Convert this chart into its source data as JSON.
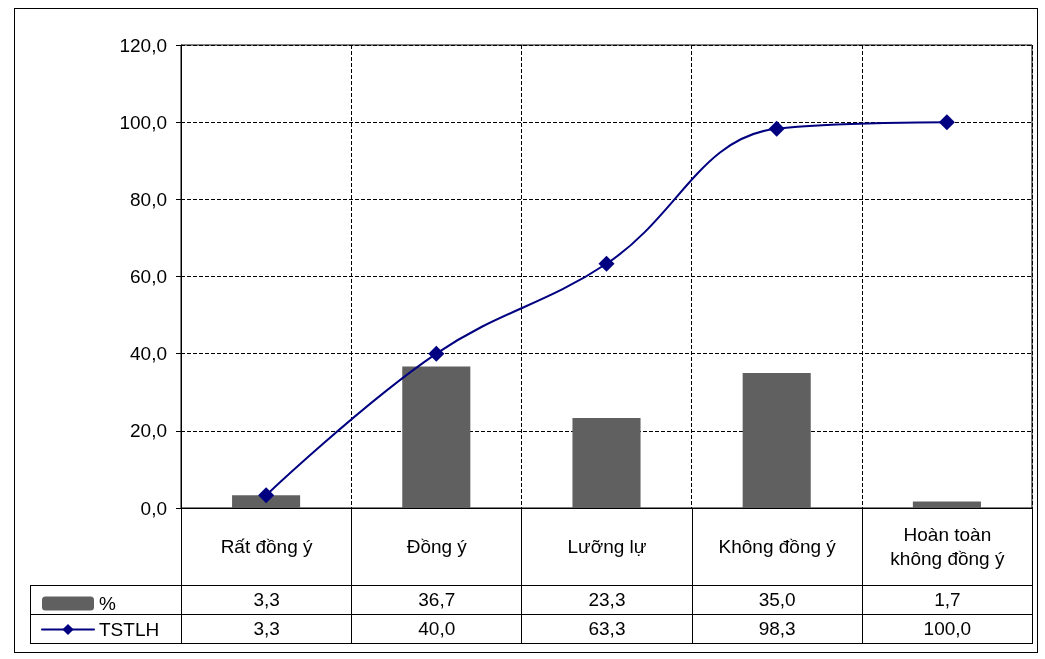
{
  "chart_data": {
    "type": "bar",
    "categories": [
      "Rất đồng ý",
      "Đồng ý",
      "Lưỡng lự",
      "Không đồng ý",
      "Hoàn toàn không đồng ý"
    ],
    "series": [
      {
        "name": "%",
        "color": "#606060",
        "values": [
          3.3,
          36.7,
          23.3,
          35.0,
          1.7
        ],
        "value_labels": [
          "3,3",
          "36,7",
          "23,3",
          "35,0",
          "1,7"
        ]
      },
      {
        "name": "TSTLH",
        "type": "line",
        "color": "#000080",
        "values": [
          3.3,
          40.0,
          63.3,
          98.3,
          100.0
        ],
        "value_labels": [
          "3,3",
          "40,0",
          "63,3",
          "98,3",
          "100,0"
        ]
      }
    ],
    "ylim": [
      0,
      120
    ],
    "yticks": [
      {
        "value": 0,
        "label": "0,0"
      },
      {
        "value": 20,
        "label": "20,0"
      },
      {
        "value": 40,
        "label": "40,0"
      },
      {
        "value": 60,
        "label": "60,0"
      },
      {
        "value": 80,
        "label": "80,0"
      },
      {
        "value": 100,
        "label": "100,0"
      },
      {
        "value": 120,
        "label": "120,0"
      }
    ],
    "grid": true,
    "legend": "bottom left",
    "marker": "diamond",
    "line_style": "solid"
  }
}
